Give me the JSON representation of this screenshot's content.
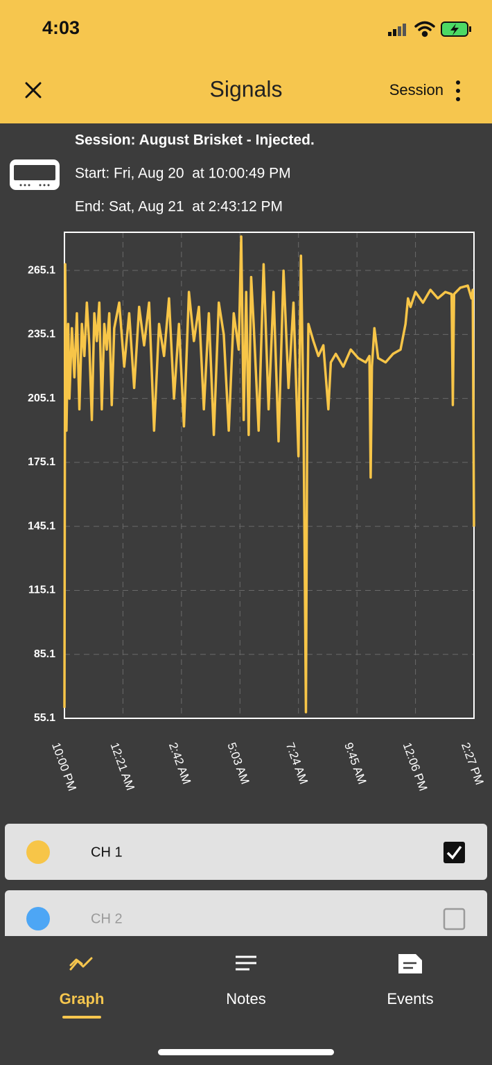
{
  "status_bar": {
    "time": "4:03"
  },
  "header": {
    "title": "Signals",
    "menu": "Session"
  },
  "session": {
    "name": "Session: August Brisket - Injected.",
    "start": "Start: Fri, Aug 20  at 10:00:49 PM",
    "end": "End: Sat, Aug 21  at 2:43:12 PM"
  },
  "chart_data": {
    "type": "line",
    "color": "#f7c548",
    "grid": true,
    "x": [
      22.0,
      22.03,
      22.08,
      22.15,
      22.2,
      22.3,
      22.4,
      22.5,
      22.6,
      22.7,
      22.8,
      22.9,
      23.0,
      23.1,
      23.2,
      23.3,
      23.4,
      23.5,
      23.6,
      23.7,
      23.8,
      23.9,
      24.0,
      24.2,
      24.4,
      24.6,
      24.8,
      25.0,
      25.2,
      25.4,
      25.6,
      25.8,
      26.0,
      26.2,
      26.4,
      26.6,
      26.8,
      27.0,
      27.2,
      27.4,
      27.6,
      27.8,
      28.0,
      28.2,
      28.4,
      28.6,
      28.8,
      29.0,
      29.1,
      29.2,
      29.3,
      29.4,
      29.5,
      29.6,
      29.8,
      30.0,
      30.2,
      30.4,
      30.6,
      30.8,
      31.0,
      31.2,
      31.4,
      31.5,
      31.6,
      31.7,
      31.75,
      31.8,
      32.0,
      32.2,
      32.4,
      32.6,
      32.7,
      32.9,
      33.2,
      33.5,
      33.8,
      34.1,
      34.25,
      34.3,
      34.35,
      34.45,
      34.6,
      34.9,
      35.2,
      35.5,
      35.7,
      35.8,
      35.9,
      36.1,
      36.4,
      36.7,
      37.0,
      37.3,
      37.55,
      37.6,
      37.65,
      37.9,
      38.2,
      38.35,
      38.4,
      38.45
    ],
    "values": [
      60,
      268,
      190,
      240,
      205,
      238,
      215,
      245,
      200,
      240,
      225,
      250,
      230,
      195,
      245,
      232,
      250,
      200,
      240,
      228,
      245,
      202,
      238,
      250,
      220,
      245,
      210,
      248,
      230,
      250,
      190,
      240,
      225,
      252,
      205,
      240,
      192,
      255,
      232,
      248,
      200,
      245,
      188,
      250,
      235,
      190,
      245,
      228,
      281,
      195,
      255,
      188,
      262,
      240,
      190,
      268,
      200,
      255,
      185,
      265,
      210,
      250,
      178,
      272,
      200,
      58,
      190,
      240,
      232,
      225,
      230,
      200,
      222,
      226,
      220,
      228,
      224,
      222,
      225,
      168,
      220,
      238,
      224,
      222,
      226,
      228,
      240,
      252,
      248,
      255,
      250,
      256,
      252,
      255,
      254,
      202,
      254,
      257,
      258,
      252,
      256,
      145
    ],
    "xlim": [
      22.0,
      38.45
    ],
    "xticks": [
      {
        "value": 22.0,
        "label": "10:00 PM"
      },
      {
        "value": 24.35,
        "label": "12:21 AM"
      },
      {
        "value": 26.7,
        "label": "2:42 AM"
      },
      {
        "value": 29.05,
        "label": "5:03 AM"
      },
      {
        "value": 31.4,
        "label": "7:24 AM"
      },
      {
        "value": 33.75,
        "label": "9:45 AM"
      },
      {
        "value": 36.1,
        "label": "12:06 PM"
      },
      {
        "value": 38.45,
        "label": "2:27 PM"
      }
    ],
    "ylim": [
      55.1,
      283
    ],
    "yticks": [
      55.1,
      85.1,
      115.1,
      145.1,
      175.1,
      205.1,
      235.1,
      265.1
    ]
  },
  "channels": [
    {
      "name": "CH 1",
      "color": "#f7c548",
      "checked": true
    },
    {
      "name": "CH 2",
      "color": "#4da6f5",
      "checked": false
    }
  ],
  "tabs": [
    {
      "label": "Graph",
      "active": true
    },
    {
      "label": "Notes",
      "active": false
    },
    {
      "label": "Events",
      "active": false
    }
  ]
}
